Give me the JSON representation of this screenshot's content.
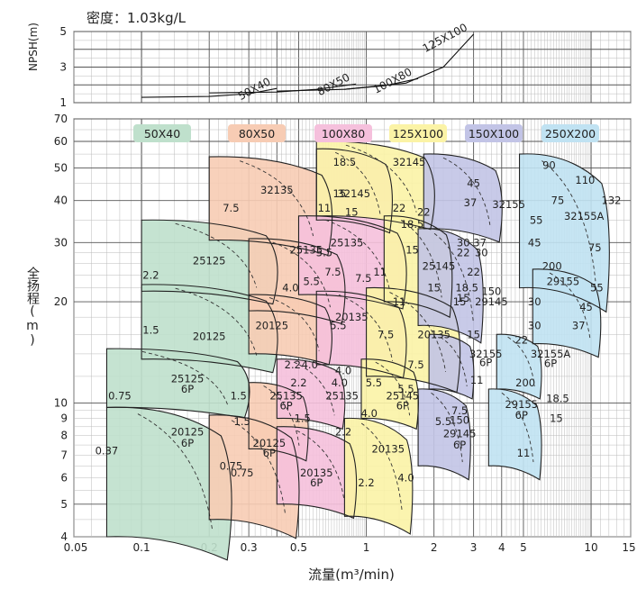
{
  "chart_data": [
    {
      "type": "line",
      "subtitle": "密度：1.03kg/L",
      "ylabel": "NPSH(m)",
      "x_scale": "log",
      "y_scale": "linear",
      "xlim": [
        0.05,
        15
      ],
      "ylim": [
        1,
        5
      ],
      "y_ticks": [
        "1",
        "3",
        "5"
      ],
      "grid": true,
      "series": [
        {
          "name": "50X40",
          "x": [
            0.1,
            0.2,
            0.3,
            0.4
          ],
          "y": [
            1.3,
            1.35,
            1.5,
            1.8
          ]
        },
        {
          "name": "80X50",
          "x": [
            0.2,
            0.4,
            0.6,
            0.9
          ],
          "y": [
            1.55,
            1.6,
            1.75,
            2.05
          ]
        },
        {
          "name": "100X80",
          "x": [
            0.4,
            0.8,
            1.2,
            1.7
          ],
          "y": [
            1.65,
            1.75,
            1.95,
            2.35
          ]
        },
        {
          "name": "125X100",
          "x": [
            0.8,
            1.5,
            2.2,
            3.0
          ],
          "y": [
            1.75,
            2.1,
            3.0,
            4.85
          ]
        }
      ]
    },
    {
      "type": "area",
      "xlabel": "流量(m³/min)",
      "ylabel": "全扬程(m)",
      "x_scale": "log",
      "y_scale": "log",
      "xlim": [
        0.05,
        15
      ],
      "ylim": [
        4,
        70
      ],
      "x_ticks": [
        "0.05",
        "0.1",
        "0.2",
        "0.3",
        "0.5",
        "1",
        "2",
        "3",
        "4",
        "5",
        "10",
        "15"
      ],
      "y_ticks": [
        "4",
        "5",
        "6",
        "7",
        "8",
        "9",
        "10",
        "20",
        "30",
        "40",
        "50",
        "60",
        "70"
      ],
      "grid": true,
      "legend": [
        "50X40",
        "80X50",
        "100X80",
        "125X100",
        "150X100",
        "250X200"
      ],
      "colors": {
        "50X40": "#bfe0cc",
        "80X50": "#f7ccb4",
        "100X80": "#f5c0dc",
        "125X100": "#fbf3a6",
        "150X100": "#c2c4e6",
        "250X200": "#c0e2f2"
      },
      "zones": [
        {
          "series": "50X40",
          "model": "25125",
          "x_range": [
            0.1,
            0.4
          ],
          "h_range": [
            21.5,
            35
          ]
        },
        {
          "series": "50X40",
          "model": "20125",
          "x_range": [
            0.1,
            0.4
          ],
          "h_range": [
            13.5,
            22.5
          ]
        },
        {
          "series": "50X40",
          "model": "25125 6P",
          "x_range": [
            0.07,
            0.3
          ],
          "h_range": [
            9.7,
            14.5
          ]
        },
        {
          "series": "50X40",
          "model": "20125 6P",
          "x_range": [
            0.07,
            0.25
          ],
          "h_range": [
            4,
            9.7
          ]
        },
        {
          "series": "80X50",
          "model": "32135",
          "x_range": [
            0.2,
            0.7
          ],
          "h_range": [
            30.5,
            54
          ]
        },
        {
          "series": "80X50",
          "model": "25135",
          "x_range": [
            0.3,
            0.8
          ],
          "h_range": [
            18.8,
            30.8
          ]
        },
        {
          "series": "80X50",
          "model": "20125",
          "x_range": [
            0.3,
            0.7
          ],
          "h_range": [
            14,
            21
          ]
        },
        {
          "series": "80X50",
          "model": "25135 6P",
          "x_range": [
            0.3,
            0.55
          ],
          "h_range": [
            7.3,
            11.5
          ]
        },
        {
          "series": "80X50",
          "model": "20125 6P",
          "x_range": [
            0.2,
            0.5
          ],
          "h_range": [
            4.5,
            9.2
          ]
        },
        {
          "series": "100X80",
          "model": "32145",
          "x_range": [
            0.6,
            1.3
          ],
          "h_range": [
            35,
            57
          ]
        },
        {
          "series": "100X80",
          "model": "25135",
          "x_range": [
            0.5,
            1.5
          ],
          "h_range": [
            21,
            36
          ]
        },
        {
          "series": "100X80",
          "model": "20135",
          "x_range": [
            0.6,
            1.5
          ],
          "h_range": [
            13,
            21.5
          ]
        },
        {
          "series": "100X80",
          "model": "25135 6P",
          "x_range": [
            0.4,
            0.8
          ],
          "h_range": [
            9,
            13.5
          ]
        },
        {
          "series": "100X80",
          "model": "20135 6P",
          "x_range": [
            0.4,
            0.9
          ],
          "h_range": [
            5,
            8.5
          ]
        },
        {
          "series": "125X100",
          "model": "32145",
          "x_range": [
            0.6,
            2.0
          ],
          "h_range": [
            36,
            60
          ]
        },
        {
          "series": "125X100",
          "model": "25145",
          "x_range": [
            1.2,
            2.4
          ],
          "h_range": [
            20,
            36
          ]
        },
        {
          "series": "125X100",
          "model": "20135",
          "x_range": [
            1.0,
            2.6
          ],
          "h_range": [
            12,
            22
          ]
        },
        {
          "series": "125X100",
          "model": "25145 6P",
          "x_range": [
            0.95,
            1.7
          ],
          "h_range": [
            9,
            13.5
          ]
        },
        {
          "series": "125X100",
          "model": "20135",
          "x_range": [
            0.8,
            1.6
          ],
          "h_range": [
            4.6,
            9
          ]
        },
        {
          "series": "150X100",
          "model": "32155",
          "x_range": [
            1.8,
            4.0
          ],
          "h_range": [
            33,
            55
          ]
        },
        {
          "series": "150X100",
          "model": "29145",
          "x_range": [
            1.7,
            3.3
          ],
          "h_range": [
            17,
            33
          ]
        },
        {
          "series": "150X100",
          "model": "32155 6P",
          "x_range": [
            1.9,
            3.0
          ],
          "h_range": [
            11,
            16
          ]
        },
        {
          "series": "150X100",
          "model": "29145 6P",
          "x_range": [
            1.7,
            2.9
          ],
          "h_range": [
            6.5,
            11
          ]
        },
        {
          "series": "250X200",
          "model": "32155A",
          "x_range": [
            4.8,
            12
          ],
          "h_range": [
            22,
            55
          ]
        },
        {
          "series": "250X200",
          "model": "29155",
          "x_range": [
            5.5,
            11
          ],
          "h_range": [
            15,
            25
          ]
        },
        {
          "series": "250X200",
          "model": "32155A 6P",
          "x_range": [
            3.8,
            6
          ],
          "h_range": [
            11,
            16
          ]
        },
        {
          "series": "250X200",
          "model": "29155 6P",
          "x_range": [
            3.5,
            6
          ],
          "h_range": [
            6.5,
            11
          ]
        }
      ],
      "annotations": [
        {
          "text": "5.5",
          "x": 0.65,
          "y": 28
        },
        {
          "text": "2.2",
          "x": 0.11,
          "y": 24
        },
        {
          "text": "25125",
          "x": 0.2,
          "y": 26.5
        },
        {
          "text": "4.0",
          "x": 0.46,
          "y": 22
        },
        {
          "text": "1.5",
          "x": 0.11,
          "y": 16.5
        },
        {
          "text": "20125",
          "x": 0.2,
          "y": 15.8
        },
        {
          "text": "2.2",
          "x": 0.47,
          "y": 13
        },
        {
          "text": "0.75",
          "x": 0.08,
          "y": 10.5
        },
        {
          "text": "25125",
          "x": 0.16,
          "y": 11.8
        },
        {
          "text": "6P",
          "x": 0.16,
          "y": 11
        },
        {
          "text": "1.5",
          "x": 0.27,
          "y": 10.5
        },
        {
          "text": "0.37",
          "x": 0.07,
          "y": 7.2
        },
        {
          "text": "20125",
          "x": 0.16,
          "y": 8.2
        },
        {
          "text": "6P",
          "x": 0.16,
          "y": 7.6
        },
        {
          "text": "0.75",
          "x": 0.25,
          "y": 6.5
        },
        {
          "text": "7.5",
          "x": 0.25,
          "y": 38
        },
        {
          "text": "32135",
          "x": 0.4,
          "y": 43
        },
        {
          "text": "11",
          "x": 0.65,
          "y": 38
        },
        {
          "text": "25135",
          "x": 0.54,
          "y": 28.5
        },
        {
          "text": "5.5",
          "x": 0.57,
          "y": 23
        },
        {
          "text": "7.5",
          "x": 0.71,
          "y": 24.5
        },
        {
          "text": "20125",
          "x": 0.38,
          "y": 17
        },
        {
          "text": "5.5",
          "x": 0.75,
          "y": 17
        },
        {
          "text": "4.0",
          "x": 0.56,
          "y": 13
        },
        {
          "text": "2.2",
          "x": 0.5,
          "y": 11.5
        },
        {
          "text": "25135",
          "x": 0.44,
          "y": 10.5
        },
        {
          "text": "6P",
          "x": 0.44,
          "y": 9.8
        },
        {
          "text": "1.5",
          "x": 0.52,
          "y": 9
        },
        {
          "text": "1.5",
          "x": 0.28,
          "y": 8.8
        },
        {
          "text": "20125",
          "x": 0.37,
          "y": 7.6
        },
        {
          "text": "6P",
          "x": 0.37,
          "y": 7.1
        },
        {
          "text": "0.75",
          "x": 0.28,
          "y": 6.2
        },
        {
          "text": "18.5",
          "x": 0.8,
          "y": 52
        },
        {
          "text": "15",
          "x": 0.76,
          "y": 42
        },
        {
          "text": "32145",
          "x": 0.88,
          "y": 42
        },
        {
          "text": "15",
          "x": 0.86,
          "y": 37
        },
        {
          "text": "25135",
          "x": 0.82,
          "y": 30
        },
        {
          "text": "11",
          "x": 1.15,
          "y": 24.5
        },
        {
          "text": "7.5",
          "x": 0.97,
          "y": 23.5
        },
        {
          "text": "20135",
          "x": 0.86,
          "y": 18
        },
        {
          "text": "11",
          "x": 1.4,
          "y": 20
        },
        {
          "text": "7.5",
          "x": 1.22,
          "y": 16
        },
        {
          "text": "4.0",
          "x": 0.79,
          "y": 12.5
        },
        {
          "text": "4.0",
          "x": 0.76,
          "y": 11.5
        },
        {
          "text": "5.5",
          "x": 1.08,
          "y": 11.5
        },
        {
          "text": "25135",
          "x": 0.78,
          "y": 10.5
        },
        {
          "text": "2.2",
          "x": 0.79,
          "y": 8.2
        },
        {
          "text": "20135",
          "x": 0.6,
          "y": 6.2
        },
        {
          "text": "6P",
          "x": 0.6,
          "y": 5.8
        },
        {
          "text": "32145",
          "x": 1.55,
          "y": 52
        },
        {
          "text": "22",
          "x": 1.4,
          "y": 38
        },
        {
          "text": "22",
          "x": 1.8,
          "y": 37
        },
        {
          "text": "18.5",
          "x": 1.6,
          "y": 34
        },
        {
          "text": "15",
          "x": 1.6,
          "y": 28.5
        },
        {
          "text": "25145",
          "x": 2.1,
          "y": 25.5
        },
        {
          "text": "15",
          "x": 2.0,
          "y": 22
        },
        {
          "text": "15",
          "x": 2.6,
          "y": 20
        },
        {
          "text": "20135",
          "x": 2.0,
          "y": 16
        },
        {
          "text": "7.5",
          "x": 1.66,
          "y": 13
        },
        {
          "text": "5.5",
          "x": 1.5,
          "y": 11
        },
        {
          "text": "25145",
          "x": 1.45,
          "y": 10.5
        },
        {
          "text": "6P",
          "x": 1.45,
          "y": 9.8
        },
        {
          "text": "4.0",
          "x": 1.03,
          "y": 9.3
        },
        {
          "text": "20135",
          "x": 1.25,
          "y": 7.3
        },
        {
          "text": "2.2",
          "x": 1.0,
          "y": 5.8
        },
        {
          "text": "4.0",
          "x": 1.5,
          "y": 6.0
        },
        {
          "text": "45",
          "x": 3.0,
          "y": 45
        },
        {
          "text": "37",
          "x": 2.9,
          "y": 39.5
        },
        {
          "text": "37",
          "x": 3.2,
          "y": 30
        },
        {
          "text": "30",
          "x": 2.7,
          "y": 30
        },
        {
          "text": "32155",
          "x": 4.3,
          "y": 39
        },
        {
          "text": "22",
          "x": 2.7,
          "y": 28
        },
        {
          "text": "30",
          "x": 3.25,
          "y": 28
        },
        {
          "text": "22",
          "x": 3.0,
          "y": 24.5
        },
        {
          "text": "18.5",
          "x": 2.8,
          "y": 22
        },
        {
          "text": "150",
          "x": 3.6,
          "y": 21.5
        },
        {
          "text": "29145",
          "x": 3.6,
          "y": 20
        },
        {
          "text": "15",
          "x": 2.7,
          "y": 20.5
        },
        {
          "text": "15",
          "x": 3.0,
          "y": 16
        },
        {
          "text": "32155",
          "x": 3.4,
          "y": 14
        },
        {
          "text": "6P",
          "x": 3.4,
          "y": 13.2
        },
        {
          "text": "11",
          "x": 3.1,
          "y": 11.7
        },
        {
          "text": "7.5",
          "x": 2.6,
          "y": 9.5
        },
        {
          "text": "5.5",
          "x": 2.2,
          "y": 8.8
        },
        {
          "text": "150",
          "x": 2.6,
          "y": 8.9
        },
        {
          "text": "29145",
          "x": 2.6,
          "y": 8.1
        },
        {
          "text": "6P",
          "x": 2.6,
          "y": 7.5
        },
        {
          "text": "55",
          "x": 5.7,
          "y": 35
        },
        {
          "text": "45",
          "x": 5.6,
          "y": 30
        },
        {
          "text": "90",
          "x": 6.5,
          "y": 51
        },
        {
          "text": "110",
          "x": 9.4,
          "y": 46
        },
        {
          "text": "75",
          "x": 7.1,
          "y": 40
        },
        {
          "text": "132",
          "x": 12.3,
          "y": 40
        },
        {
          "text": "32155A",
          "x": 9.3,
          "y": 36
        },
        {
          "text": "75",
          "x": 10.4,
          "y": 29
        },
        {
          "text": "200",
          "x": 6.7,
          "y": 25.5
        },
        {
          "text": "29155",
          "x": 7.5,
          "y": 23
        },
        {
          "text": "55",
          "x": 10.6,
          "y": 22
        },
        {
          "text": "30",
          "x": 5.6,
          "y": 20
        },
        {
          "text": "45",
          "x": 9.5,
          "y": 19.3
        },
        {
          "text": "30",
          "x": 5.6,
          "y": 17
        },
        {
          "text": "37",
          "x": 8.8,
          "y": 17
        },
        {
          "text": "22",
          "x": 4.9,
          "y": 15.4
        },
        {
          "text": "32155A",
          "x": 6.6,
          "y": 14
        },
        {
          "text": "6P",
          "x": 6.6,
          "y": 13.1
        },
        {
          "text": "200",
          "x": 5.1,
          "y": 11.5
        },
        {
          "text": "18.5",
          "x": 7.1,
          "y": 10.3
        },
        {
          "text": "29155",
          "x": 4.9,
          "y": 9.9
        },
        {
          "text": "6P",
          "x": 4.9,
          "y": 9.2
        },
        {
          "text": "15",
          "x": 7.0,
          "y": 9.0
        },
        {
          "text": "11",
          "x": 5.0,
          "y": 7.1
        }
      ]
    }
  ]
}
